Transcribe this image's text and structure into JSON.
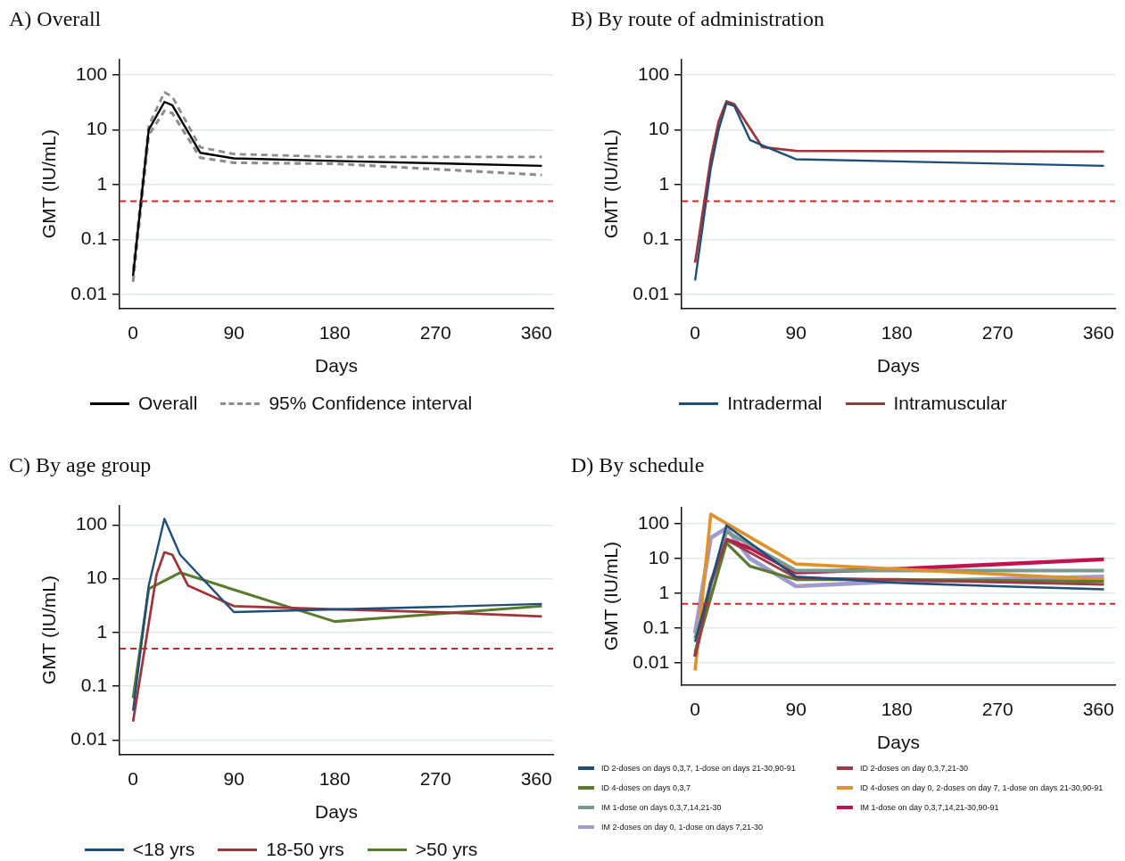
{
  "chart_data": [
    {
      "type": "line",
      "title": "A) Overall",
      "xlabel": "Days",
      "ylabel": "GMT (IU/mL)",
      "xlim": [
        -12,
        375
      ],
      "xticks": [
        0,
        90,
        180,
        270,
        360
      ],
      "ylim": [
        0.0056,
        190
      ],
      "yticks": [
        0.01,
        0.1,
        1,
        10,
        100
      ],
      "log": "y",
      "grid": "y",
      "legend": "bottom",
      "ref_lines": [
        {
          "axis": "y",
          "value": 0.5,
          "color": "#c8282d",
          "line_style": "dashed"
        }
      ],
      "series": [
        {
          "name": "Overall",
          "color": "#000000",
          "line_style": "solid",
          "x": [
            0,
            14,
            28,
            35,
            60,
            90,
            180,
            365
          ],
          "values": [
            0.022,
            10,
            32,
            28,
            3.8,
            3.0,
            2.7,
            2.2
          ]
        },
        {
          "name": "95% Confidence interval",
          "color": "#8c8c8c",
          "line_style": "dashed",
          "x": [
            0,
            14,
            28,
            35,
            60,
            90,
            180,
            365
          ],
          "values": [
            0.028,
            12,
            48,
            40,
            4.8,
            3.6,
            3.2,
            3.2
          ]
        },
        {
          "color": "#8c8c8c",
          "line_style": "dashed",
          "x": [
            0,
            14,
            28,
            35,
            60,
            90,
            180,
            365
          ],
          "values": [
            0.017,
            8,
            22,
            20,
            3.1,
            2.5,
            2.4,
            1.5
          ]
        }
      ]
    },
    {
      "type": "line",
      "title": "B) By route of administration",
      "xlabel": "Days",
      "ylabel": "GMT (IU/mL)",
      "xlim": [
        -12,
        375
      ],
      "xticks": [
        0,
        90,
        180,
        270,
        360
      ],
      "ylim": [
        0.0056,
        190
      ],
      "yticks": [
        0.01,
        0.1,
        1,
        10,
        100
      ],
      "log": "y",
      "grid": "y",
      "legend": "bottom",
      "ref_lines": [
        {
          "axis": "y",
          "value": 0.5,
          "color": "#c8282d",
          "line_style": "dashed"
        }
      ],
      "series": [
        {
          "name": "Intradermal",
          "color": "#1f4e79",
          "x": [
            0,
            14,
            21,
            28,
            35,
            49,
            60,
            90,
            365
          ],
          "values": [
            0.018,
            2,
            10,
            30,
            27,
            6.5,
            5.2,
            2.9,
            2.2
          ]
        },
        {
          "name": "Intramuscular",
          "color": "#a0343b",
          "x": [
            0,
            14,
            21,
            28,
            35,
            60,
            90,
            365
          ],
          "values": [
            0.038,
            3,
            14,
            33,
            29,
            4.8,
            4.1,
            4.0
          ]
        }
      ]
    },
    {
      "type": "line",
      "title": "C) By age group",
      "xlabel": "Days",
      "ylabel": "GMT (IU/mL)",
      "xlim": [
        -12,
        375
      ],
      "xticks": [
        0,
        90,
        180,
        270,
        360
      ],
      "ylim": [
        0.0054,
        230
      ],
      "yticks": [
        0.01,
        0.1,
        1,
        10,
        100
      ],
      "log": "y",
      "grid": "y",
      "legend": "bottom",
      "ref_lines": [
        {
          "axis": "y",
          "value": 0.5,
          "color": "#c8282d",
          "line_style": "dashed"
        }
      ],
      "series": [
        {
          "name": "<18 yrs",
          "color": "#1f4e79",
          "x": [
            0,
            14,
            28,
            42,
            90,
            180,
            270,
            365
          ],
          "values": [
            0.035,
            7.5,
            130,
            28,
            2.4,
            2.7,
            3.0,
            3.4
          ]
        },
        {
          "name": "18-50 yrs",
          "color": "#a0343b",
          "x": [
            0,
            21,
            28,
            35,
            49,
            90,
            180,
            270,
            365
          ],
          "values": [
            0.022,
            12,
            31,
            28,
            7.5,
            3.1,
            2.7,
            2.4,
            2.0
          ]
        },
        {
          "name": ">50 yrs",
          "color": "#5a7a2e",
          "x": [
            0,
            14,
            42,
            180,
            270,
            365
          ],
          "values": [
            0.06,
            6.5,
            13,
            1.6,
            2.2,
            3.1
          ]
        }
      ]
    },
    {
      "type": "line",
      "title": "D) By schedule",
      "xlabel": "Days",
      "ylabel": "GMT (IU/mL)",
      "xlim": [
        -12,
        375
      ],
      "xticks": [
        0,
        90,
        180,
        270,
        360
      ],
      "ylim": [
        0.0023,
        300
      ],
      "yticks": [
        0.01,
        0.1,
        1,
        10,
        100
      ],
      "log": "y",
      "grid": "y",
      "legend": "bottom",
      "ref_lines": [
        {
          "axis": "y",
          "value": 0.5,
          "color": "#c8282d",
          "line_style": "dashed"
        }
      ],
      "series": [
        {
          "name": "ID 2-doses on days 0,3,7, 1-dose on days 21-30,90-91",
          "color": "#1f4e79",
          "x": [
            0,
            28,
            90,
            180,
            270,
            365
          ],
          "values": [
            0.04,
            90,
            3,
            2,
            1.6,
            1.3
          ]
        },
        {
          "name": "ID 2-doses on day 0,3,7,21-30",
          "color": "#9a3b45",
          "x": [
            0,
            14,
            28,
            49,
            90,
            365
          ],
          "values": [
            0.015,
            2,
            35,
            15,
            2.8,
            1.8
          ]
        },
        {
          "name": "ID 4-doses on days 0,3,7",
          "color": "#5a7a2e",
          "x": [
            0,
            28,
            49,
            90,
            180,
            365
          ],
          "values": [
            0.02,
            28,
            6,
            2.5,
            2.5,
            2.2
          ]
        },
        {
          "name": "ID 4-doses on day 0, 2-doses on day 7, 1-dose on days 21-30,90-91",
          "color": "#e0922a",
          "x": [
            0,
            14,
            90,
            180,
            365
          ],
          "values": [
            0.006,
            190,
            7,
            5,
            2.5
          ]
        },
        {
          "name": "IM 1-dose on days 0,3,7,14,21-30",
          "color": "#7a9a8f",
          "x": [
            0,
            28,
            90,
            365
          ],
          "values": [
            0.05,
            60,
            4.5,
            4.5
          ]
        },
        {
          "name": "IM 1-dose on day 0,3,7,14,21-30,90-91",
          "color": "#c0134f",
          "x": [
            0,
            14,
            28,
            49,
            90,
            180,
            365
          ],
          "values": [
            0.015,
            2,
            35,
            20,
            4,
            5,
            9.5
          ]
        },
        {
          "name": "IM 2-doses on day 0, 1-dose on days 7,21-30",
          "color": "#a09ad0",
          "x": [
            0,
            14,
            28,
            49,
            90,
            180,
            365
          ],
          "values": [
            0.07,
            40,
            75,
            10,
            1.6,
            2.2,
            3
          ]
        }
      ]
    }
  ]
}
